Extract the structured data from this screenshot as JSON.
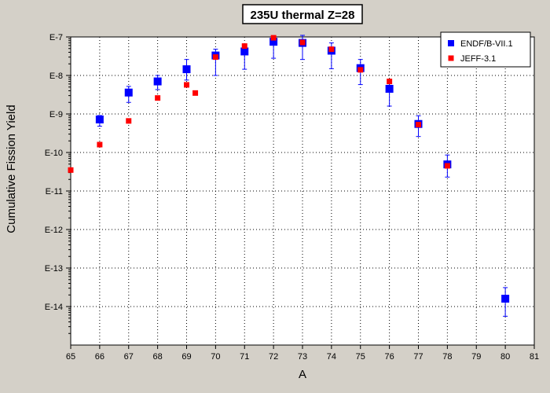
{
  "chart_data": {
    "type": "scatter",
    "title": "235U thermal Z=28",
    "xlabel": "A",
    "ylabel": "Cumulative Fission Yield",
    "xlim": [
      65,
      81
    ],
    "x_ticks": [
      65,
      66,
      67,
      68,
      69,
      70,
      71,
      72,
      73,
      74,
      75,
      76,
      77,
      78,
      79,
      80,
      81
    ],
    "y_scale": "log",
    "ylim": [
      1e-15,
      1e-07
    ],
    "y_ticks": [
      {
        "value": 1e-07,
        "label": "E-7"
      },
      {
        "value": 1e-08,
        "label": "E-8"
      },
      {
        "value": 1e-09,
        "label": "E-9"
      },
      {
        "value": 1e-10,
        "label": "E-10"
      },
      {
        "value": 1e-11,
        "label": "E-11"
      },
      {
        "value": 1e-12,
        "label": "E-12"
      },
      {
        "value": 1e-13,
        "label": "E-13"
      },
      {
        "value": 1e-14,
        "label": "E-14"
      }
    ],
    "grid": true,
    "legend_position": "top-right",
    "series": [
      {
        "name": "ENDF/B-VII.1",
        "color": "#0000ff",
        "marker": "square",
        "points": [
          {
            "x": 66,
            "y": 7.2e-10,
            "ylo": 4.8e-10,
            "yhi": 9.1e-10
          },
          {
            "x": 67,
            "y": 3.6e-09,
            "ylo": 2e-09,
            "yhi": 5.2e-09
          },
          {
            "x": 68,
            "y": 7e-09,
            "ylo": 4.3e-09,
            "yhi": 1e-08
          },
          {
            "x": 69,
            "y": 1.45e-08,
            "ylo": 7.6e-09,
            "yhi": 2.6e-08
          },
          {
            "x": 70,
            "y": 3.3e-08,
            "ylo": 1e-08,
            "yhi": 4.8e-08
          },
          {
            "x": 71,
            "y": 4.2e-08,
            "ylo": 1.45e-08,
            "yhi": 6.3e-08
          },
          {
            "x": 72,
            "y": 7.5e-08,
            "ylo": 2.8e-08,
            "yhi": 9.8e-08
          },
          {
            "x": 73,
            "y": 7e-08,
            "ylo": 2.6e-08,
            "yhi": 1.1e-07
          },
          {
            "x": 74,
            "y": 4.4e-08,
            "ylo": 1.5e-08,
            "yhi": 7e-08
          },
          {
            "x": 75,
            "y": 1.55e-08,
            "ylo": 5.8e-09,
            "yhi": 2.6e-08
          },
          {
            "x": 76,
            "y": 4.5e-09,
            "ylo": 1.6e-09,
            "yhi": 7.2e-09
          },
          {
            "x": 77,
            "y": 5.5e-10,
            "ylo": 2.6e-10,
            "yhi": 9e-10
          },
          {
            "x": 78,
            "y": 4.9e-11,
            "ylo": 2.3e-11,
            "yhi": 8.6e-11
          },
          {
            "x": 80,
            "y": 1.6e-14,
            "ylo": 5.6e-15,
            "yhi": 3.1e-14
          }
        ]
      },
      {
        "name": "JEFF-3.1",
        "color": "#ff0000",
        "marker": "square",
        "points": [
          {
            "x": 65,
            "y": 3.5e-11
          },
          {
            "x": 66,
            "y": 1.6e-10
          },
          {
            "x": 67,
            "y": 6.6e-10
          },
          {
            "x": 68,
            "y": 2.6e-09
          },
          {
            "x": 69,
            "y": 5.7e-09
          },
          {
            "x": 69.3,
            "y": 3.5e-09
          },
          {
            "x": 70,
            "y": 3e-08
          },
          {
            "x": 71,
            "y": 5.8e-08
          },
          {
            "x": 72,
            "y": 9.5e-08
          },
          {
            "x": 73,
            "y": 7.2e-08
          },
          {
            "x": 74,
            "y": 4.8e-08
          },
          {
            "x": 75,
            "y": 1.4e-08
          },
          {
            "x": 76,
            "y": 7e-09
          },
          {
            "x": 77,
            "y": 5.3e-10
          },
          {
            "x": 78,
            "y": 4.5e-11
          }
        ]
      }
    ]
  }
}
